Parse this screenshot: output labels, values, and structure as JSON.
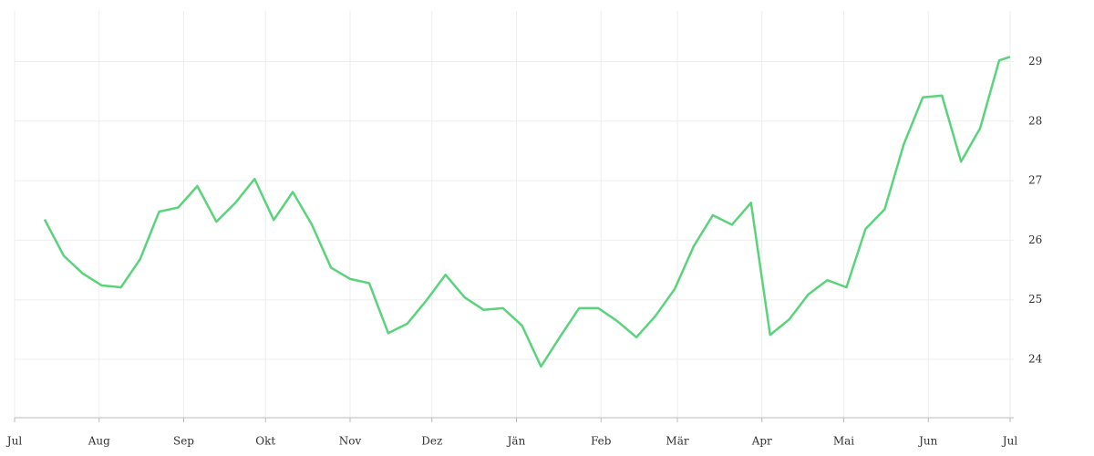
{
  "chart_data": {
    "type": "line",
    "x": [
      11,
      18,
      25,
      32,
      39,
      46,
      53,
      60,
      67,
      74,
      81,
      88,
      95,
      102,
      109,
      116,
      123,
      130,
      137,
      144,
      151,
      158,
      165,
      172,
      179,
      186,
      193,
      200,
      207,
      214,
      221,
      228,
      235,
      242,
      249,
      256,
      263,
      270,
      277,
      284,
      291,
      298,
      305,
      312,
      319,
      326,
      333,
      340,
      347,
      354,
      361,
      365
    ],
    "series": [
      {
        "color": "#5ad47c",
        "values": [
          26.35,
          25.74,
          25.44,
          25.24,
          25.21,
          25.68,
          26.48,
          26.55,
          26.91,
          26.31,
          26.63,
          27.03,
          26.34,
          26.81,
          26.26,
          25.54,
          25.35,
          25.28,
          24.44,
          24.6,
          24.99,
          25.42,
          25.04,
          24.83,
          24.86,
          24.57,
          23.88,
          24.38,
          24.86,
          24.86,
          24.64,
          24.37,
          24.73,
          25.18,
          25.9,
          26.42,
          26.26,
          26.63,
          24.41,
          24.67,
          25.09,
          25.33,
          25.21,
          26.19,
          26.52,
          27.61,
          28.4,
          28.43,
          27.32,
          27.88,
          29.02,
          29.08
        ]
      }
    ],
    "xlim": [
      0,
      365
    ],
    "xticks": [
      {
        "value": 0,
        "label": "Jul"
      },
      {
        "value": 31,
        "label": "Aug"
      },
      {
        "value": 62,
        "label": "Sep"
      },
      {
        "value": 92,
        "label": "Okt"
      },
      {
        "value": 123,
        "label": "Nov"
      },
      {
        "value": 153,
        "label": "Dez"
      },
      {
        "value": 184,
        "label": "Jän"
      },
      {
        "value": 215,
        "label": "Feb"
      },
      {
        "value": 243,
        "label": "Mär"
      },
      {
        "value": 274,
        "label": "Apr"
      },
      {
        "value": 304,
        "label": "Mai"
      },
      {
        "value": 335,
        "label": "Jun"
      },
      {
        "value": 365,
        "label": "Jul"
      }
    ],
    "ylim": [
      23.02,
      29.85
    ],
    "yticks": [
      24,
      25,
      26,
      27,
      28,
      29
    ],
    "grid": true
  }
}
